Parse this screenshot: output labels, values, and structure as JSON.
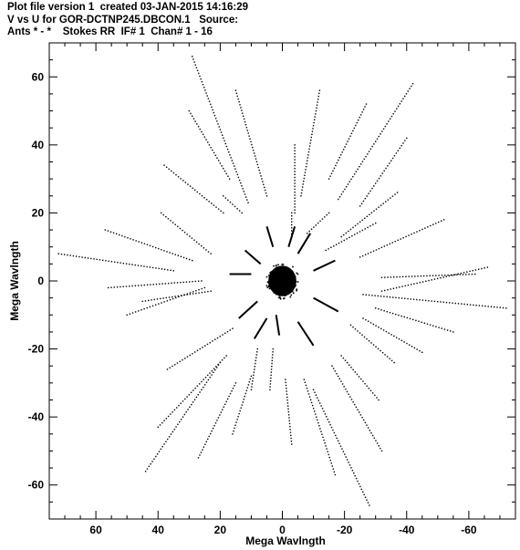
{
  "title_lines": [
    "Plot file version 1  created 03-JAN-2015 14:16:29",
    "V vs U for GOR-DCTNP245.DBCON.1   Source:",
    "Ants * - *    Stokes RR  IF# 1  Chan# 1 - 16"
  ],
  "chart_data": {
    "type": "scatter",
    "title": "V vs U for GOR-DCTNP245.DBCON.1   Source:",
    "xlabel": "Mega Wavlngth",
    "ylabel": "Mega Wavlngth",
    "xlim": [
      75,
      -75
    ],
    "ylim": [
      -70,
      70
    ],
    "x_ticks": [
      60,
      40,
      20,
      0,
      -20,
      -40,
      -60
    ],
    "y_ticks": [
      60,
      40,
      20,
      0,
      -20,
      -40,
      -60
    ],
    "x_tick_labels": [
      "60",
      "40",
      "20",
      "0",
      "-20",
      "-40",
      "-60"
    ],
    "y_tick_labels": [
      "60",
      "40",
      "20",
      "0",
      "-20",
      "-40",
      "-60"
    ],
    "color": "#000000",
    "radial_tracks": [
      {
        "start": [
          29,
          66
        ],
        "end": [
          11,
          23
        ]
      },
      {
        "start": [
          15,
          56
        ],
        "end": [
          5,
          25
        ]
      },
      {
        "start": [
          -42,
          58
        ],
        "end": [
          -18,
          24
        ]
      },
      {
        "start": [
          -27,
          52
        ],
        "end": [
          -15,
          30
        ]
      },
      {
        "start": [
          -12,
          56
        ],
        "end": [
          -6,
          25
        ]
      },
      {
        "start": [
          30,
          50
        ],
        "end": [
          17,
          30
        ]
      },
      {
        "start": [
          -40,
          42
        ],
        "end": [
          -25,
          22
        ]
      },
      {
        "start": [
          -37,
          26
        ],
        "end": [
          -19,
          13
        ]
      },
      {
        "start": [
          -52,
          18
        ],
        "end": [
          -25,
          7
        ]
      },
      {
        "start": [
          -62,
          2
        ],
        "end": [
          -32,
          1
        ]
      },
      {
        "start": [
          -66,
          4
        ],
        "end": [
          -32,
          -3
        ]
      },
      {
        "start": [
          -72,
          -8
        ],
        "end": [
          -26,
          -4
        ]
      },
      {
        "start": [
          -55,
          -15
        ],
        "end": [
          -30,
          -8
        ]
      },
      {
        "start": [
          -45,
          -21
        ],
        "end": [
          -26,
          -11
        ]
      },
      {
        "start": [
          -36,
          -24
        ],
        "end": [
          -22,
          -13
        ]
      },
      {
        "start": [
          -31,
          -35
        ],
        "end": [
          -19,
          -22
        ]
      },
      {
        "start": [
          -32,
          -50
        ],
        "end": [
          -16,
          -25
        ]
      },
      {
        "start": [
          -28,
          -66
        ],
        "end": [
          -10,
          -32
        ]
      },
      {
        "start": [
          -17,
          -57
        ],
        "end": [
          -7,
          -29
        ]
      },
      {
        "start": [
          -3,
          -48
        ],
        "end": [
          -1,
          -29
        ]
      },
      {
        "start": [
          4,
          -32
        ],
        "end": [
          3,
          -20
        ]
      },
      {
        "start": [
          10,
          -32
        ],
        "end": [
          8,
          -20
        ]
      },
      {
        "start": [
          16,
          -45
        ],
        "end": [
          10,
          -28
        ]
      },
      {
        "start": [
          27,
          -52
        ],
        "end": [
          15,
          -30
        ]
      },
      {
        "start": [
          40,
          -43
        ],
        "end": [
          18,
          -22
        ]
      },
      {
        "start": [
          44,
          -56
        ],
        "end": [
          20,
          -24
        ]
      },
      {
        "start": [
          37,
          -26
        ],
        "end": [
          16,
          -14
        ]
      },
      {
        "start": [
          50,
          -10
        ],
        "end": [
          25,
          -2
        ]
      },
      {
        "start": [
          45,
          -6
        ],
        "end": [
          23,
          -3
        ]
      },
      {
        "start": [
          56,
          -2
        ],
        "end": [
          26,
          0
        ]
      },
      {
        "start": [
          72,
          8
        ],
        "end": [
          35,
          3
        ]
      },
      {
        "start": [
          57,
          15
        ],
        "end": [
          29,
          6
        ]
      },
      {
        "start": [
          39,
          20
        ],
        "end": [
          23,
          8
        ]
      },
      {
        "start": [
          38,
          34
        ],
        "end": [
          19,
          20
        ]
      },
      {
        "start": [
          19,
          25
        ],
        "end": [
          13,
          20
        ]
      },
      {
        "start": [
          -3,
          20
        ],
        "end": [
          -3,
          13
        ]
      },
      {
        "start": [
          -15,
          20
        ],
        "end": [
          -8,
          14
        ]
      },
      {
        "start": [
          -30,
          17
        ],
        "end": [
          -14,
          9
        ]
      },
      {
        "start": [
          -4,
          40
        ],
        "end": [
          -4,
          20
        ]
      }
    ],
    "core_segments": [
      {
        "start": [
          5,
          16
        ],
        "end": [
          3,
          10
        ]
      },
      {
        "start": [
          -9,
          14
        ],
        "end": [
          -5,
          8
        ]
      },
      {
        "start": [
          -17,
          6
        ],
        "end": [
          -10,
          3
        ]
      },
      {
        "start": [
          -18,
          -9
        ],
        "end": [
          -10,
          -5
        ]
      },
      {
        "start": [
          -10,
          -19
        ],
        "end": [
          -5,
          -12
        ]
      },
      {
        "start": [
          1,
          -16
        ],
        "end": [
          2,
          -10
        ]
      },
      {
        "start": [
          9,
          -17
        ],
        "end": [
          5,
          -11
        ]
      },
      {
        "start": [
          14,
          -11
        ],
        "end": [
          8,
          -6
        ]
      },
      {
        "start": [
          17,
          2
        ],
        "end": [
          10,
          2
        ]
      },
      {
        "start": [
          12,
          9
        ],
        "end": [
          7,
          5
        ]
      },
      {
        "start": [
          -4,
          16
        ],
        "end": [
          -2,
          10
        ]
      }
    ],
    "core_cluster": {
      "center": [
        0,
        0
      ],
      "radius": 4.5
    }
  }
}
